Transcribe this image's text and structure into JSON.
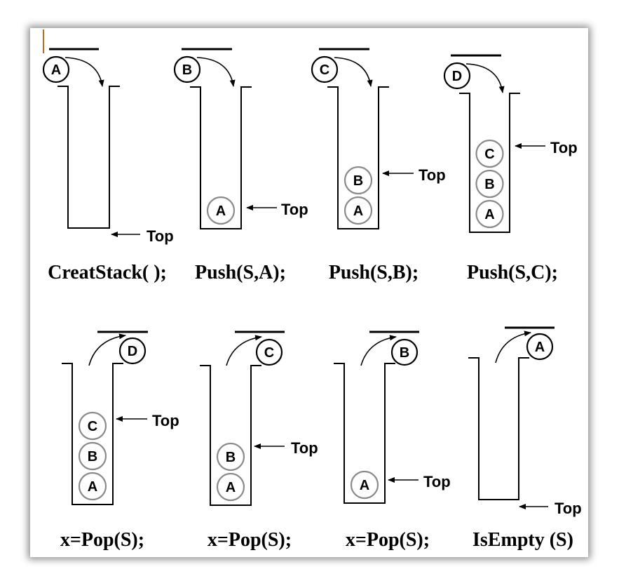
{
  "colors": {
    "ink": "#000000",
    "stack_item_border": "#8a8a8a",
    "accent": "#c46a1c"
  },
  "top_label": "Top",
  "panels": [
    {
      "id": "creat",
      "caption": "CreatStack( );",
      "op": "push",
      "incoming": "A",
      "items": []
    },
    {
      "id": "push-a",
      "caption": "Push(S,A);",
      "op": "push",
      "incoming": "B",
      "items": [
        "A"
      ]
    },
    {
      "id": "push-b",
      "caption": "Push(S,B);",
      "op": "push",
      "incoming": "C",
      "items": [
        "A",
        "B"
      ]
    },
    {
      "id": "push-c",
      "caption": "Push(S,C);",
      "op": "push",
      "incoming": "D",
      "items": [
        "A",
        "B",
        "C"
      ]
    },
    {
      "id": "pop-1",
      "caption": "x=Pop(S);",
      "op": "pop",
      "outgoing": "D",
      "items": [
        "A",
        "B",
        "C"
      ]
    },
    {
      "id": "pop-2",
      "caption": "x=Pop(S);",
      "op": "pop",
      "outgoing": "C",
      "items": [
        "A",
        "B"
      ]
    },
    {
      "id": "pop-3",
      "caption": "x=Pop(S);",
      "op": "pop",
      "outgoing": "B",
      "items": [
        "A"
      ]
    },
    {
      "id": "isempty",
      "caption": "IsEmpty (S)",
      "op": "pop",
      "outgoing": "A",
      "items": []
    }
  ]
}
